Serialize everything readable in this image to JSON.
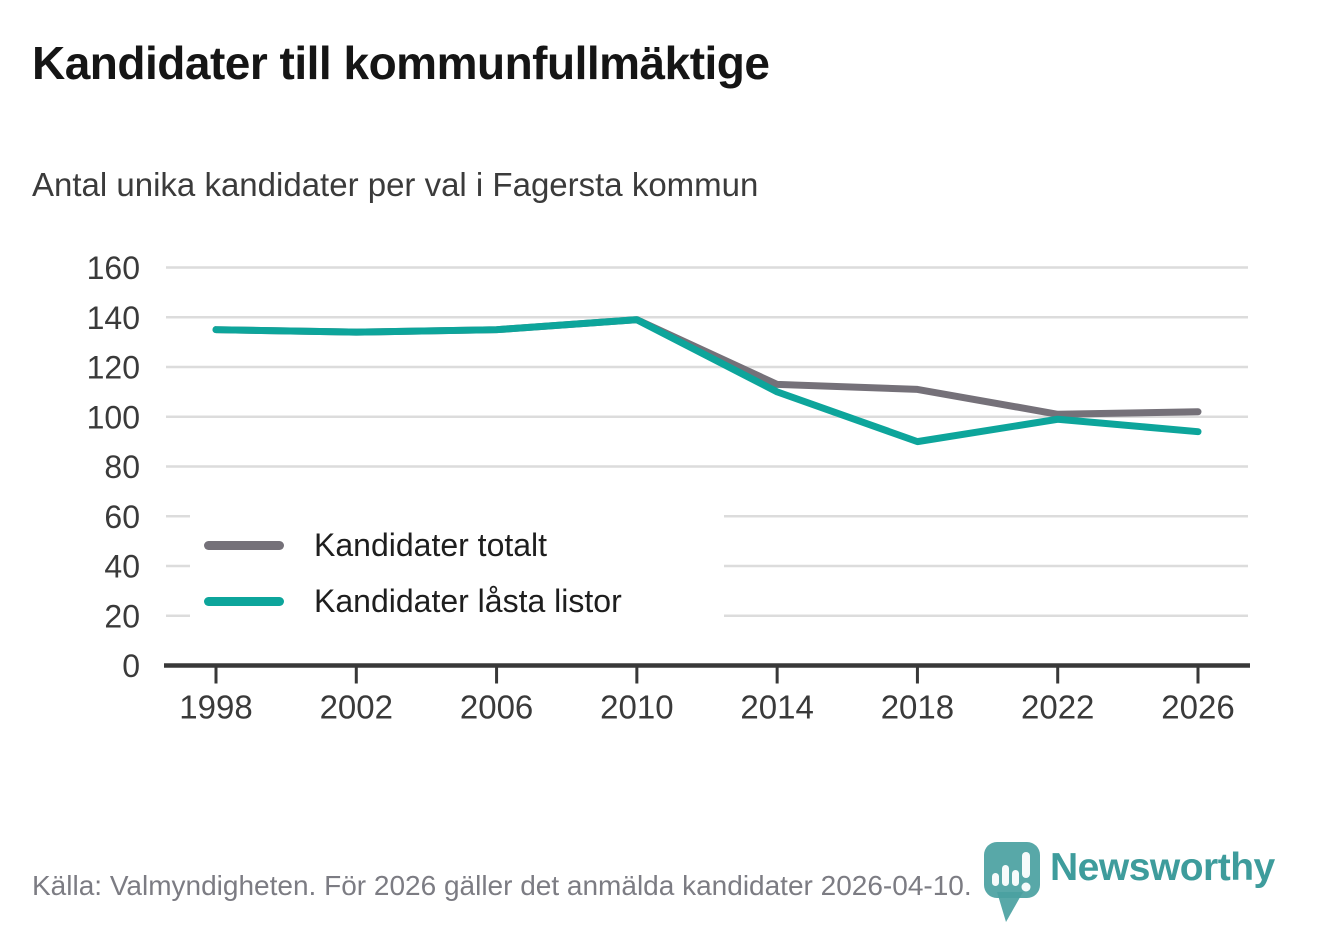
{
  "chart_data": {
    "type": "line",
    "title": "Kandidater till kommunfullmäktige",
    "subtitle": "Antal unika kandidater per val i Fagersta kommun",
    "x": [
      1998,
      2002,
      2006,
      2010,
      2014,
      2018,
      2022,
      2026
    ],
    "series": [
      {
        "name": "Kandidater totalt",
        "color": "#757179",
        "values": [
          135,
          134,
          135,
          139,
          113,
          111,
          101,
          102
        ]
      },
      {
        "name": "Kandidater låsta listor",
        "color": "#0da59b",
        "values": [
          135,
          134,
          135,
          139,
          110,
          90,
          99,
          94
        ]
      }
    ],
    "ylim": [
      0,
      160
    ],
    "yticks": [
      0,
      20,
      40,
      60,
      80,
      100,
      120,
      140,
      160
    ],
    "grid": true,
    "legend_position": "inside-bottom-left",
    "colors": {
      "gridline": "#dcdcdc",
      "axis": "#383838",
      "tick_label": "#3a3a3a"
    }
  },
  "footer": {
    "source": "Källa: Valmyndigheten. För 2026 gäller det anmälda kandidater 2026-04-10."
  },
  "logo": {
    "wordmark": "Newsworthy",
    "brand_color": "#3e9c9c"
  }
}
